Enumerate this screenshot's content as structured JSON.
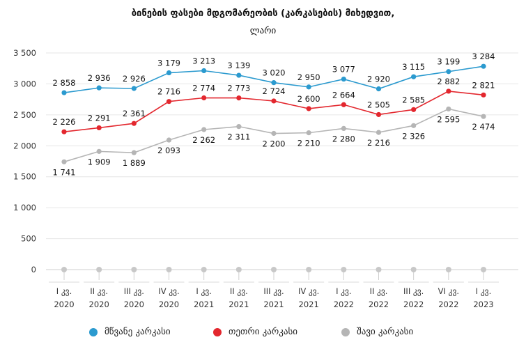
{
  "chart_data": {
    "type": "line",
    "title": "ბინების ფასები მდგომარეობის (კარკასების) მიხედვით,",
    "subtitle": "ლარი",
    "categories": [
      {
        "top": "I კვ.",
        "bottom": "2020"
      },
      {
        "top": "II კვ.",
        "bottom": "2020"
      },
      {
        "top": "III კვ.",
        "bottom": "2020"
      },
      {
        "top": "IV კვ.",
        "bottom": "2020"
      },
      {
        "top": "I კვ.",
        "bottom": "2021"
      },
      {
        "top": "II კვ.",
        "bottom": "2021"
      },
      {
        "top": "III კვ.",
        "bottom": "2021"
      },
      {
        "top": "IV კვ.",
        "bottom": "2021"
      },
      {
        "top": "I კვ.",
        "bottom": "2022"
      },
      {
        "top": "II კვ.",
        "bottom": "2022"
      },
      {
        "top": "III კვ.",
        "bottom": "2022"
      },
      {
        "top": "VI კვ.",
        "bottom": "2022"
      },
      {
        "top": "I კვ.",
        "bottom": "2023"
      }
    ],
    "ylim": [
      0,
      3500
    ],
    "yticks": [
      {
        "value": 0,
        "label": "0"
      },
      {
        "value": 500,
        "label": "500"
      },
      {
        "value": 1000,
        "label": "1 000"
      },
      {
        "value": 1500,
        "label": "1 500"
      },
      {
        "value": 2000,
        "label": "2 000"
      },
      {
        "value": 2500,
        "label": "2 500"
      },
      {
        "value": 3000,
        "label": "3 000"
      },
      {
        "value": 3500,
        "label": "3 500"
      }
    ],
    "grid": true,
    "legend_position": "bottom",
    "series": [
      {
        "name": "მწვანე კარკასი",
        "color": "#2B9ACF",
        "label_position": "above",
        "values": [
          2858,
          2936,
          2926,
          3179,
          3213,
          3139,
          3020,
          2950,
          3077,
          2920,
          3115,
          3199,
          3284
        ],
        "labels": [
          "2 858",
          "2 936",
          "2 926",
          "3 179",
          "3 213",
          "3 139",
          "3 020",
          "2 950",
          "3 077",
          "2 920",
          "3 115",
          "3 199",
          "3 284"
        ]
      },
      {
        "name": "თეთრი კარკასი",
        "color": "#E3272E",
        "label_position": "above",
        "values": [
          2226,
          2291,
          2361,
          2716,
          2774,
          2773,
          2724,
          2600,
          2664,
          2505,
          2585,
          2882,
          2821
        ],
        "labels": [
          "2 226",
          "2 291",
          "2 361",
          "2 716",
          "2 774",
          "2 773",
          "2 724",
          "2 600",
          "2 664",
          "2 505",
          "2 585",
          "2 882",
          "2 821"
        ]
      },
      {
        "name": "შავი კარკასი",
        "color": "#B5B5B5",
        "label_position": "below",
        "values": [
          1741,
          1909,
          1889,
          2093,
          2262,
          2311,
          2200,
          2210,
          2280,
          2216,
          2326,
          2595,
          2474
        ],
        "labels": [
          "1 741",
          "1 909",
          "1 889",
          "2 093",
          "2 262",
          "2 311",
          "2 200",
          "2 210",
          "2 280",
          "2 216",
          "2 326",
          "2 595",
          "2 474"
        ]
      }
    ]
  }
}
